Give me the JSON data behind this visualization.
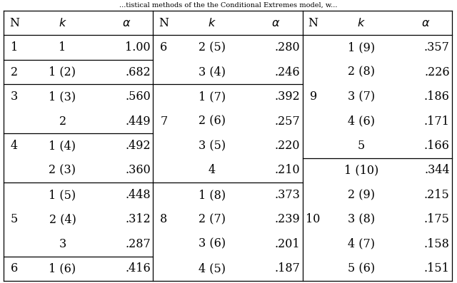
{
  "title_text": "...tistical methods of the the Conditional Extremes model, w...",
  "section1": [
    {
      "N": "1",
      "k": "1",
      "alpha": "1.00"
    },
    {
      "N": "2",
      "k": "1 (2)",
      "alpha": ".682"
    },
    {
      "N": "3",
      "k": "1 (3)",
      "alpha": ".560"
    },
    {
      "N": "",
      "k": "2",
      "alpha": ".449"
    },
    {
      "N": "4",
      "k": "1 (4)",
      "alpha": ".492"
    },
    {
      "N": "",
      "k": "2 (3)",
      "alpha": ".360"
    },
    {
      "N": "",
      "k": "1 (5)",
      "alpha": ".448"
    },
    {
      "N": "5",
      "k": "2 (4)",
      "alpha": ".312"
    },
    {
      "N": "",
      "k": "3",
      "alpha": ".287"
    },
    {
      "N": "6",
      "k": "1 (6)",
      "alpha": ".416"
    }
  ],
  "section2": [
    {
      "N": "6",
      "k": "2 (5)",
      "alpha": ".280"
    },
    {
      "N": "",
      "k": "3 (4)",
      "alpha": ".246"
    },
    {
      "N": "",
      "k": "1 (7)",
      "alpha": ".392"
    },
    {
      "N": "7",
      "k": "2 (6)",
      "alpha": ".257"
    },
    {
      "N": "",
      "k": "3 (5)",
      "alpha": ".220"
    },
    {
      "N": "",
      "k": "4",
      "alpha": ".210"
    },
    {
      "N": "",
      "k": "1 (8)",
      "alpha": ".373"
    },
    {
      "N": "8",
      "k": "2 (7)",
      "alpha": ".239"
    },
    {
      "N": "",
      "k": "3 (6)",
      "alpha": ".201"
    },
    {
      "N": "",
      "k": "4 (5)",
      "alpha": ".187"
    }
  ],
  "section3": [
    {
      "N": "",
      "k": "1 (9)",
      "alpha": ".357"
    },
    {
      "N": "",
      "k": "2 (8)",
      "alpha": ".226"
    },
    {
      "N": "9",
      "k": "3 (7)",
      "alpha": ".186"
    },
    {
      "N": "",
      "k": "4 (6)",
      "alpha": ".171"
    },
    {
      "N": "",
      "k": "5",
      "alpha": ".166"
    },
    {
      "N": "",
      "k": "1 (10)",
      "alpha": ".344"
    },
    {
      "N": "",
      "k": "2 (9)",
      "alpha": ".215"
    },
    {
      "N": "10",
      "k": "3 (8)",
      "alpha": ".175"
    },
    {
      "N": "",
      "k": "4 (7)",
      "alpha": ".158"
    },
    {
      "N": "",
      "k": "5 (6)",
      "alpha": ".151"
    }
  ],
  "s1_dividers": [
    1,
    2,
    4,
    6,
    9
  ],
  "s2_dividers": [
    2,
    6
  ],
  "s3_dividers": [
    5
  ],
  "bg_color": "#ffffff",
  "font_size": 11.5
}
